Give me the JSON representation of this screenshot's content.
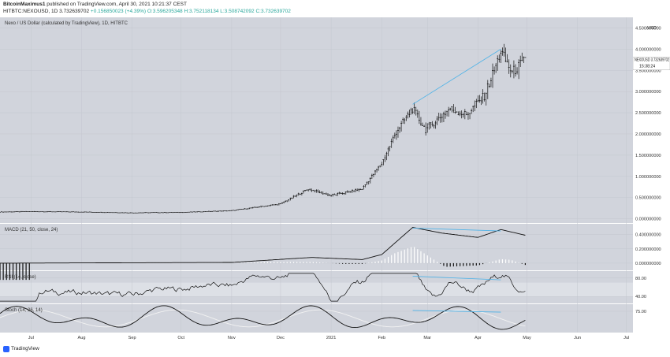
{
  "header": {
    "author": "BitcoinMaximus1",
    "published": "published on TradingView.com, April 30, 2021 10:21:37 CEST",
    "symbol_line_prefix": "HITBTC:NEXOUSD, 1D 3.732639702",
    "change": "+0.156850023 (+4.39%)",
    "ohlc": "O:3.596205348 H:3.752118134 L:3.508742092 C:3.732639702"
  },
  "footer": {
    "brand": "TradingView"
  },
  "chart_data": [
    {
      "type": "candlestick",
      "title": "Nexo / US Dollar (calculated by TradingView), 1D, HITBTC",
      "y_unit_label": "USD",
      "ylim": [
        -0.1,
        4.75
      ],
      "y_ticks": [
        "4.500000000",
        "4.000000000",
        "3.500000000",
        "3.000000000",
        "2.500000000",
        "2.000000000",
        "1.500000000",
        "1.000000000",
        "0.500000000",
        "0.000000000"
      ],
      "last_price_label": "NEXOUSD",
      "last_price": "3.732639702",
      "countdown": "15:38:24",
      "x_ticks": [
        "Jul",
        "Aug",
        "Sep",
        "Oct",
        "Nov",
        "Dec",
        "2021",
        "Feb",
        "Mar",
        "Apr",
        "May",
        "Jun",
        "Jul"
      ],
      "x_tick_dates": [
        "2020-07-01",
        "2020-08-01",
        "2020-09-01",
        "2020-10-01",
        "2020-11-01",
        "2020-12-01",
        "2021-01-01",
        "2021-02-01",
        "2021-03-01",
        "2021-04-01",
        "2021-05-01",
        "2021-06-01",
        "2021-07-01"
      ],
      "x_range": [
        "2020-06-12",
        "2021-07-05"
      ],
      "price_path": [
        {
          "date": "2020-06-12",
          "close": 0.16
        },
        {
          "date": "2020-07-01",
          "close": 0.17
        },
        {
          "date": "2020-08-01",
          "close": 0.16
        },
        {
          "date": "2020-09-01",
          "close": 0.14
        },
        {
          "date": "2020-10-01",
          "close": 0.15
        },
        {
          "date": "2020-11-01",
          "close": 0.19
        },
        {
          "date": "2020-12-01",
          "close": 0.35
        },
        {
          "date": "2020-12-18",
          "close": 0.7
        },
        {
          "date": "2021-01-01",
          "close": 0.55
        },
        {
          "date": "2021-01-20",
          "close": 0.7
        },
        {
          "date": "2021-02-01",
          "close": 1.3
        },
        {
          "date": "2021-02-10",
          "close": 2.05
        },
        {
          "date": "2021-02-20",
          "close": 2.6
        },
        {
          "date": "2021-02-28",
          "close": 2.1
        },
        {
          "date": "2021-03-15",
          "close": 2.6
        },
        {
          "date": "2021-03-25",
          "close": 2.45
        },
        {
          "date": "2021-04-05",
          "close": 2.9
        },
        {
          "date": "2021-04-12",
          "close": 3.6
        },
        {
          "date": "2021-04-15",
          "close": 3.95
        },
        {
          "date": "2021-04-22",
          "close": 3.45
        },
        {
          "date": "2021-04-30",
          "close": 3.73
        }
      ],
      "trendline": [
        {
          "date": "2021-02-20",
          "value": 2.7
        },
        {
          "date": "2021-04-15",
          "value": 4.0
        }
      ]
    },
    {
      "type": "line",
      "title": "MACD (21, 50, close, 24)",
      "ylim": [
        -0.1,
        0.55
      ],
      "y_ticks": [
        "0.400000000",
        "0.200000000",
        "0.000000000"
      ],
      "macd_path": [
        {
          "date": "2020-06-12",
          "v": 0.0
        },
        {
          "date": "2020-11-01",
          "v": 0.01
        },
        {
          "date": "2020-12-20",
          "v": 0.08
        },
        {
          "date": "2021-01-20",
          "v": 0.05
        },
        {
          "date": "2021-02-01",
          "v": 0.12
        },
        {
          "date": "2021-02-20",
          "v": 0.5
        },
        {
          "date": "2021-03-10",
          "v": 0.42
        },
        {
          "date": "2021-04-01",
          "v": 0.36
        },
        {
          "date": "2021-04-15",
          "v": 0.47
        },
        {
          "date": "2021-04-30",
          "v": 0.39
        }
      ],
      "trendline": [
        {
          "date": "2021-02-20",
          "value": 0.49
        },
        {
          "date": "2021-04-15",
          "value": 0.45
        }
      ]
    },
    {
      "type": "line",
      "title": "RSI (14, close)",
      "ylim": [
        25,
        95
      ],
      "y_ticks": [
        "80.00",
        "40.00"
      ],
      "band": [
        40,
        70
      ],
      "trendline": [
        {
          "date": "2021-02-20",
          "value": 84
        },
        {
          "date": "2021-04-15",
          "value": 76
        }
      ]
    },
    {
      "type": "line",
      "title": "Stoch (14, 26, 14)",
      "ylim": [
        0,
        100
      ],
      "y_ticks": [
        "75.00"
      ],
      "trendline": [
        {
          "date": "2021-02-20",
          "value": 78
        },
        {
          "date": "2021-04-15",
          "value": 72
        }
      ]
    }
  ]
}
